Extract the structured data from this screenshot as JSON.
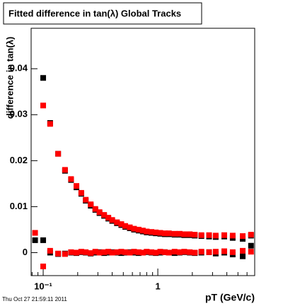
{
  "chart_data": {
    "type": "scatter",
    "title": "Fitted difference in tan(λ)  Global Tracks",
    "x_label": "pT (GeV/c)",
    "y_label": "difference in tan(λ)",
    "timestamp": "Thu Oct 27 21:59:11 2011",
    "log_x": true,
    "xlim": [
      0.0785,
      7.0
    ],
    "ylim": [
      -0.005,
      0.0488
    ],
    "xticks": [
      {
        "value": 0.1,
        "label": "10⁻¹"
      },
      1
    ],
    "xminorticks": [
      0.08,
      0.09,
      0.2,
      0.3,
      0.4,
      0.5,
      0.6,
      0.7,
      0.8,
      0.9,
      2,
      3,
      4,
      5,
      6,
      7
    ],
    "yticks": [
      0,
      0.01,
      0.02,
      0.03,
      0.04
    ],
    "x": [
      0.085,
      0.1,
      0.115,
      0.135,
      0.155,
      0.175,
      0.195,
      0.215,
      0.235,
      0.26,
      0.285,
      0.31,
      0.34,
      0.37,
      0.4,
      0.44,
      0.48,
      0.52,
      0.57,
      0.62,
      0.68,
      0.74,
      0.8,
      0.88,
      0.96,
      1.05,
      1.15,
      1.25,
      1.4,
      1.55,
      1.7,
      1.9,
      2.1,
      2.4,
      2.8,
      3.2,
      3.8,
      4.5,
      5.5,
      6.5
    ],
    "series": [
      {
        "color": "#000000",
        "values": [
          0.0027,
          0.038,
          0.0282,
          0.0215,
          0.0178,
          0.0158,
          0.0142,
          0.0128,
          0.0113,
          0.0102,
          0.0093,
          0.0086,
          0.008,
          0.0074,
          0.0069,
          0.0064,
          0.006,
          0.0056,
          0.0053,
          0.005,
          0.0048,
          0.0046,
          0.0044,
          0.0043,
          0.0042,
          0.0041,
          0.004,
          0.004,
          0.0039,
          0.0039,
          0.0038,
          0.0038,
          0.0037,
          0.0036,
          0.0035,
          0.0034,
          0.0035,
          0.0032,
          0.003,
          0.0037
        ]
      },
      {
        "color": "#ff0000",
        "values": [
          0.0043,
          0.032,
          0.028,
          0.0215,
          0.018,
          0.016,
          0.0145,
          0.013,
          0.0115,
          0.0105,
          0.0095,
          0.0088,
          0.0082,
          0.0076,
          0.0071,
          0.0066,
          0.0062,
          0.0058,
          0.0055,
          0.0052,
          0.005,
          0.0048,
          0.0046,
          0.0045,
          0.0044,
          0.0043,
          0.0042,
          0.0042,
          0.0041,
          0.0041,
          0.004,
          0.004,
          0.0039,
          0.0038,
          0.0038,
          0.0037,
          0.0038,
          0.0037,
          0.0036,
          0.0039
        ]
      },
      {
        "color": "#000000",
        "values": [
          null,
          0.0027,
          0,
          -0.0003,
          -0.0002,
          0,
          -0.0001,
          0.0001,
          0,
          -0.0002,
          0,
          0.0001,
          -0.0001,
          0,
          0.0001,
          0,
          -0.0001,
          0,
          0.0001,
          0,
          -0.0001,
          0,
          0.0001,
          0,
          -0.0001,
          0,
          0.0001,
          0,
          -0.0001,
          0,
          0.0001,
          0,
          -0.0001,
          0,
          0.0001,
          -0.0002,
          0,
          -0.0004,
          -0.0008,
          0.0015
        ]
      },
      {
        "color": "#ff0000",
        "values": [
          null,
          -0.003,
          0.0004,
          -0.0002,
          -0.0003,
          0.0001,
          0,
          0.0002,
          0.0001,
          -0.0001,
          0.0002,
          0,
          0.0001,
          0.0002,
          0,
          0.0001,
          0.0002,
          0.0001,
          0,
          0.0002,
          0.0001,
          0,
          0.0002,
          0.0001,
          0,
          0.0002,
          0.0001,
          0,
          0.0002,
          0.0001,
          0.0002,
          0.0001,
          0,
          0.0002,
          0.0001,
          0.0002,
          0.0003,
          0.0001,
          0.0004,
          0.0002
        ]
      }
    ]
  }
}
